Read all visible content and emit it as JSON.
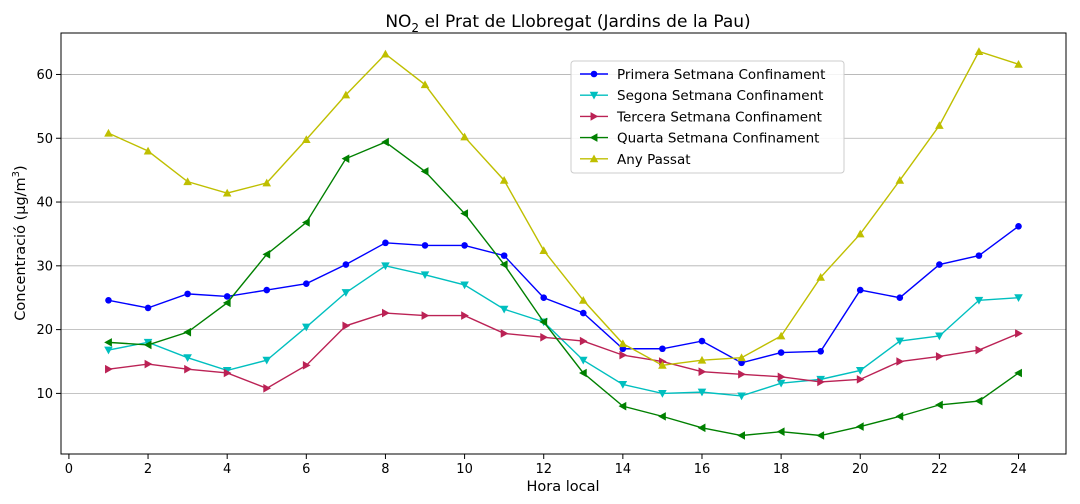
{
  "chart_data": {
    "type": "line",
    "title": "NO2 el Prat de Llobregat (Jardins de la Pau)",
    "title_parts": {
      "pre": "NO",
      "sub": "2",
      "post": " el Prat de Llobregat (Jardins de la Pau)"
    },
    "xlabel": "Hora local",
    "ylabel": "Concentració (µg/m³)",
    "ylabel_parts": {
      "pre": "Concentració (µg/m",
      "sup": "3",
      "post": ")"
    },
    "xlim": [
      -0.2,
      25.2
    ],
    "ylim": [
      0.5,
      66.5
    ],
    "xticks": [
      0,
      2,
      4,
      6,
      8,
      10,
      12,
      14,
      16,
      18,
      20,
      22,
      24
    ],
    "yticks": [
      10,
      20,
      30,
      40,
      50,
      60
    ],
    "grid": "horizontal",
    "legend_position": "upper-center",
    "x": [
      1,
      2,
      3,
      4,
      5,
      6,
      7,
      8,
      9,
      10,
      11,
      12,
      13,
      14,
      15,
      16,
      17,
      18,
      19,
      20,
      21,
      22,
      23,
      24
    ],
    "series": [
      {
        "name": "Primera Setmana Confinament",
        "color": "#0000ff",
        "marker": "circle",
        "values": [
          24.6,
          23.4,
          25.6,
          25.2,
          26.2,
          27.2,
          30.2,
          33.6,
          33.2,
          33.2,
          31.6,
          25.0,
          22.6,
          17.0,
          17.0,
          18.2,
          14.8,
          16.4,
          16.6,
          26.2,
          25.0,
          30.2,
          31.6,
          36.2
        ]
      },
      {
        "name": "Segona Setmana Confinament",
        "color": "#00bfbf",
        "marker": "triangle-down",
        "values": [
          16.8,
          18.0,
          15.6,
          13.6,
          15.2,
          20.4,
          25.8,
          30.0,
          28.6,
          27.0,
          23.2,
          21.2,
          15.2,
          11.4,
          10.0,
          10.2,
          9.6,
          11.6,
          12.2,
          13.6,
          18.2,
          19.0,
          24.6,
          25.0
        ]
      },
      {
        "name": "Tercera Setmana Confinament",
        "color": "#bb2255",
        "marker": "triangle-right",
        "values": [
          13.8,
          14.6,
          13.8,
          13.2,
          10.8,
          14.4,
          20.6,
          22.6,
          22.2,
          22.2,
          19.4,
          18.8,
          18.2,
          16.0,
          15.0,
          13.4,
          13.0,
          12.6,
          11.8,
          12.2,
          15.0,
          15.8,
          16.8,
          19.4
        ]
      },
      {
        "name": "Quarta Setmana Confinament",
        "color": "#008000",
        "marker": "triangle-left",
        "values": [
          18.0,
          17.6,
          19.6,
          24.2,
          31.8,
          36.8,
          46.8,
          49.4,
          44.8,
          38.2,
          30.2,
          21.2,
          13.2,
          8.0,
          6.4,
          4.6,
          3.4,
          4.0,
          3.4,
          4.8,
          6.4,
          8.2,
          8.8,
          13.2
        ]
      },
      {
        "name": "Any Passat",
        "color": "#bfbf00",
        "marker": "triangle-up",
        "values": [
          50.8,
          48.0,
          43.2,
          41.4,
          43.0,
          49.8,
          56.8,
          63.2,
          58.4,
          50.2,
          43.4,
          32.4,
          24.6,
          17.8,
          14.4,
          15.2,
          15.6,
          19.0,
          28.2,
          35.0,
          43.4,
          52.0,
          63.6,
          61.6
        ]
      }
    ]
  }
}
